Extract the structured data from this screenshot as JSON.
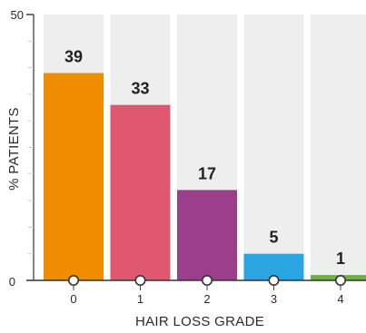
{
  "chart_data": {
    "type": "bar",
    "categories": [
      "0",
      "1",
      "2",
      "3",
      "4"
    ],
    "values": [
      39,
      33,
      17,
      5,
      1
    ],
    "data_labels": [
      "39",
      "33",
      "17",
      "5",
      "1"
    ],
    "colors": [
      "#f08c00",
      "#e05870",
      "#9b3f8d",
      "#2aa5e1",
      "#6bb33a"
    ],
    "background_bar_color": "#eeeeee",
    "title": "",
    "xlabel": "HAIR LOSS GRADE",
    "ylabel": "% PATIENTS",
    "ylim": [
      0,
      50
    ],
    "y_tick_labels": [
      "0",
      "50"
    ],
    "grid": false,
    "legend": "none"
  }
}
